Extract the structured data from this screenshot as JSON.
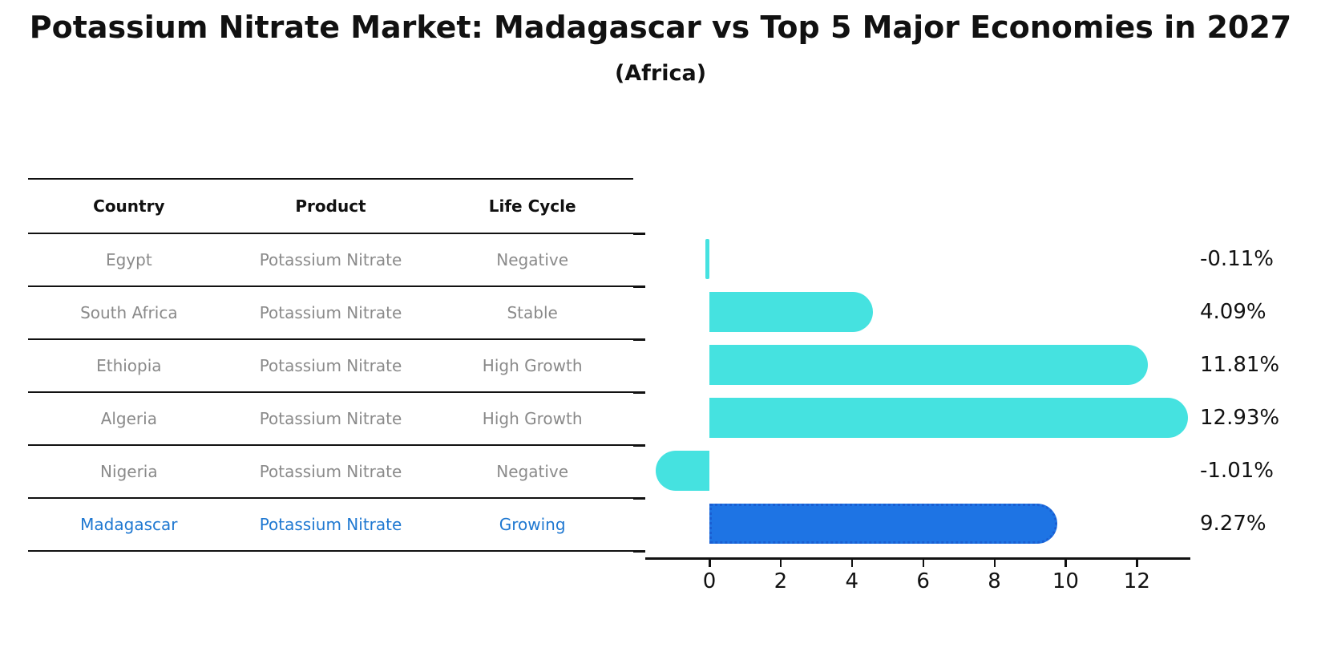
{
  "title": "Potassium Nitrate Market: Madagascar vs Top 5 Major Economies in 2027",
  "subtitle": "(Africa)",
  "colors": {
    "bar": "#45E2E0",
    "highlight_bar": "#1E74E4",
    "highlight_border": "#1A5ED2",
    "highlight_text": "#1F78D1",
    "table_text": "#8A8A8A",
    "heading_text": "#111111",
    "axis": "#111111"
  },
  "table": {
    "columns": [
      "Country",
      "Product",
      "Life Cycle"
    ],
    "rows": [
      {
        "country": "Egypt",
        "product": "Potassium Nitrate",
        "life_cycle": "Negative",
        "highlight": false
      },
      {
        "country": "South Africa",
        "product": "Potassium Nitrate",
        "life_cycle": "Stable",
        "highlight": false
      },
      {
        "country": "Ethiopia",
        "product": "Potassium Nitrate",
        "life_cycle": "High Growth",
        "highlight": false
      },
      {
        "country": "Algeria",
        "product": "Potassium Nitrate",
        "life_cycle": "High Growth",
        "highlight": false
      },
      {
        "country": "Nigeria",
        "product": "Potassium Nitrate",
        "life_cycle": "Negative",
        "highlight": false
      },
      {
        "country": "Madagascar",
        "product": "Potassium Nitrate",
        "life_cycle": "Growing",
        "highlight": true
      }
    ]
  },
  "chart_data": {
    "type": "bar",
    "orientation": "horizontal",
    "title": "Potassium Nitrate Market: Madagascar vs Top 5 Major Economies in 2027 (Africa)",
    "categories": [
      "Egypt",
      "South Africa",
      "Ethiopia",
      "Algeria",
      "Nigeria",
      "Madagascar"
    ],
    "values": [
      -0.11,
      4.09,
      11.81,
      12.93,
      -1.01,
      9.27
    ],
    "value_labels": [
      "-0.11%",
      "4.09%",
      "11.81%",
      "12.93%",
      "-1.01%",
      "9.27%"
    ],
    "highlight_index": 5,
    "xlabel": "",
    "ylabel": "",
    "xticks": [
      0,
      2,
      4,
      6,
      8,
      10,
      12
    ],
    "xlim": [
      -1.8,
      13.5
    ],
    "grid": false,
    "legend": false
  }
}
